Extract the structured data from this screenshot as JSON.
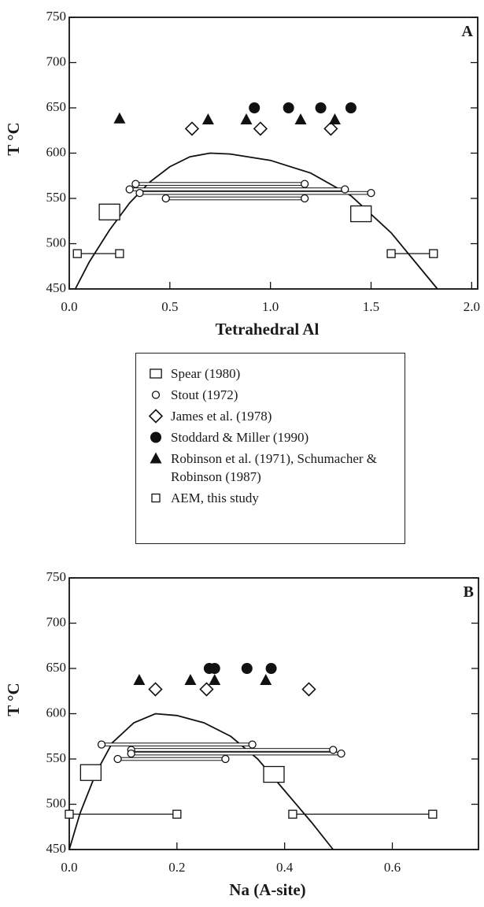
{
  "chart_data": [
    {
      "type": "scatter",
      "panel": "A",
      "x_label": "Tetrahedral Al",
      "y_label": "T °C",
      "xlim": [
        0,
        2.03
      ],
      "ylim": [
        450,
        750
      ],
      "xticks": [
        {
          "value": 0,
          "label": "0.0"
        },
        0.5,
        {
          "value": 1,
          "label": "1.0"
        },
        1.5,
        {
          "value": 2,
          "label": "2.0"
        }
      ],
      "yticks": [
        450,
        500,
        550,
        600,
        650,
        700,
        750
      ],
      "curve": {
        "x": [
          0.03,
          0.1,
          0.2,
          0.3,
          0.4,
          0.5,
          0.6,
          0.7,
          0.8,
          1.0,
          1.2,
          1.4,
          1.6,
          1.7,
          1.83
        ],
        "y": [
          450,
          480,
          515,
          545,
          568,
          585,
          596,
          600,
          599,
          592,
          578,
          553,
          512,
          485,
          450
        ]
      },
      "series": [
        {
          "name": "Spear (1980)",
          "marker": "rect-large",
          "x": [
            0.2,
            1.45
          ],
          "y": [
            535,
            533
          ]
        },
        {
          "name": "Stout (1972)",
          "marker": "circle-open",
          "tie_lines": "double",
          "x": [
            0.33,
            1.17,
            0.3,
            1.37,
            0.35,
            1.5,
            0.48,
            1.17
          ],
          "y": [
            566,
            566,
            560,
            560,
            556,
            556,
            550,
            550
          ]
        },
        {
          "name": "James et al. (1978)",
          "marker": "diamond-open",
          "x": [
            0.61,
            0.95,
            1.3
          ],
          "y": [
            627,
            627,
            627
          ]
        },
        {
          "name": "Stoddard & Miller (1990)",
          "marker": "circle-filled",
          "x": [
            0.92,
            1.09,
            1.25,
            1.4
          ],
          "y": [
            650,
            650,
            650,
            650
          ]
        },
        {
          "name": "Robinson et al. (1971), Schumacher & Robinson (1987)",
          "marker": "triangle-filled",
          "x": [
            0.25,
            0.69,
            0.88,
            1.15,
            1.32
          ],
          "y": [
            638,
            637,
            637,
            637,
            637
          ]
        },
        {
          "name": "AEM, this study",
          "marker": "square-open",
          "tie_lines": "single",
          "x": [
            0.04,
            0.25,
            1.6,
            1.81
          ],
          "y": [
            489,
            489,
            489,
            489
          ]
        }
      ]
    },
    {
      "type": "scatter",
      "panel": "B",
      "x_label": "Na (A-site)",
      "y_label": "T °C",
      "xlim": [
        0,
        0.76
      ],
      "ylim": [
        450,
        750
      ],
      "xticks": [
        {
          "value": 0,
          "label": "0.0"
        },
        0.2,
        0.4,
        0.6
      ],
      "yticks": [
        450,
        500,
        550,
        600,
        650,
        700,
        750
      ],
      "curve": {
        "x": [
          0,
          0.02,
          0.05,
          0.08,
          0.12,
          0.16,
          0.2,
          0.25,
          0.3,
          0.35,
          0.4,
          0.45,
          0.49
        ],
        "y": [
          450,
          490,
          535,
          568,
          590,
          600,
          598,
          590,
          575,
          550,
          515,
          480,
          450
        ]
      },
      "series": [
        {
          "marker": "rect-large",
          "x": [
            0.04,
            0.38
          ],
          "y": [
            535,
            533
          ]
        },
        {
          "marker": "circle-open",
          "tie_lines": "double",
          "x": [
            0.06,
            0.34,
            0.09,
            0.29,
            0.115,
            0.49,
            0.115,
            0.505
          ],
          "y": [
            566,
            566,
            550,
            550,
            560,
            560,
            556,
            556
          ]
        },
        {
          "marker": "diamond-open",
          "x": [
            0.16,
            0.255,
            0.445
          ],
          "y": [
            627,
            627,
            627
          ]
        },
        {
          "marker": "circle-filled",
          "x": [
            0.26,
            0.27,
            0.33,
            0.375
          ],
          "y": [
            650,
            650,
            650,
            650
          ]
        },
        {
          "marker": "triangle-filled",
          "x": [
            0.13,
            0.225,
            0.27,
            0.365
          ],
          "y": [
            637,
            637,
            637,
            637
          ]
        },
        {
          "marker": "square-open",
          "tie_lines": "single",
          "x": [
            0,
            0.2,
            0.415,
            0.675
          ],
          "y": [
            489,
            489,
            489,
            489
          ]
        }
      ]
    }
  ]
}
